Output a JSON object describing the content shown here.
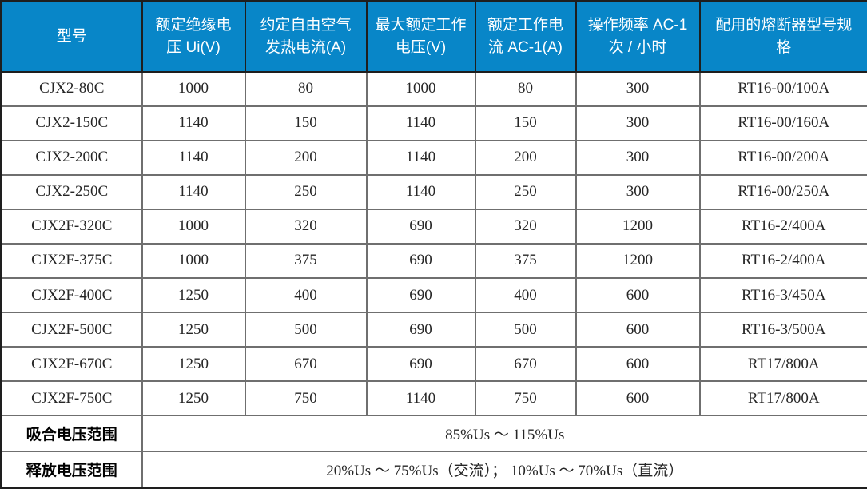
{
  "table": {
    "columns": [
      "型号",
      "额定绝缘电压 Ui(V)",
      "约定自由空气发热电流(A)",
      "最大额定工作电压(V)",
      "额定工作电流 AC-1(A)",
      "操作频率 AC-1 次 / 小时",
      "配用的熔断器型号规格"
    ],
    "rows": [
      [
        "CJX2-80C",
        "1000",
        "80",
        "1000",
        "80",
        "300",
        "RT16-00/100A"
      ],
      [
        "CJX2-150C",
        "1140",
        "150",
        "1140",
        "150",
        "300",
        "RT16-00/160A"
      ],
      [
        "CJX2-200C",
        "1140",
        "200",
        "1140",
        "200",
        "300",
        "RT16-00/200A"
      ],
      [
        "CJX2-250C",
        "1140",
        "250",
        "1140",
        "250",
        "300",
        "RT16-00/250A"
      ],
      [
        "CJX2F-320C",
        "1000",
        "320",
        "690",
        "320",
        "1200",
        "RT16-2/400A"
      ],
      [
        "CJX2F-375C",
        "1000",
        "375",
        "690",
        "375",
        "1200",
        "RT16-2/400A"
      ],
      [
        "CJX2F-400C",
        "1250",
        "400",
        "690",
        "400",
        "600",
        "RT16-3/450A"
      ],
      [
        "CJX2F-500C",
        "1250",
        "500",
        "690",
        "500",
        "600",
        "RT16-3/500A"
      ],
      [
        "CJX2F-670C",
        "1250",
        "670",
        "690",
        "670",
        "600",
        "RT17/800A"
      ],
      [
        "CJX2F-750C",
        "1250",
        "750",
        "1140",
        "750",
        "600",
        "RT17/800A"
      ]
    ],
    "footer_rows": [
      {
        "label": "吸合电压范围",
        "value": "85%Us ～ 115%Us"
      },
      {
        "label": "释放电压范围",
        "value": "20%Us ～ 75%Us（交流）； 10%Us ～ 70%Us（直流）"
      }
    ]
  },
  "colors": {
    "header_bg": "#0886C8",
    "header_text": "#FFFFFF",
    "outer_border": "#1E1E1E",
    "inner_border": "#6F6F6F",
    "body_text": "#262626"
  }
}
